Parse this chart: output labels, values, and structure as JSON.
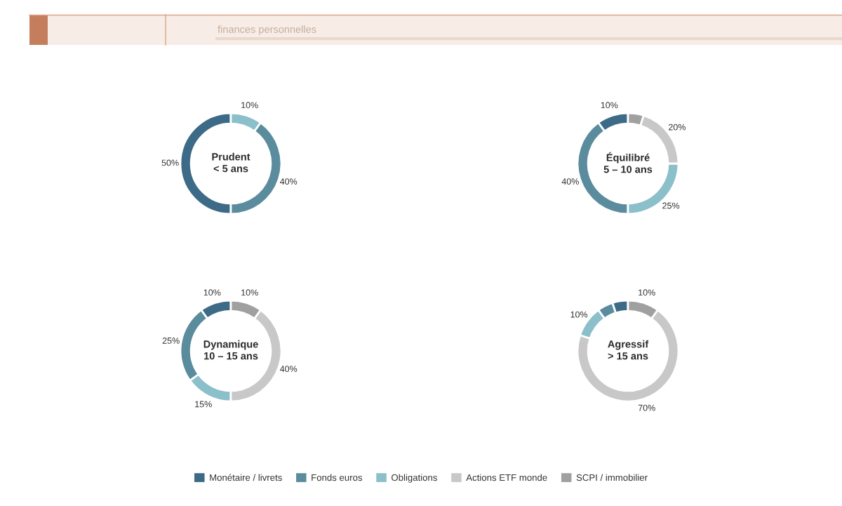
{
  "chart_data": [
    {
      "type": "donut",
      "title": "Prudent\n< 5 ans",
      "annotations": [
        "finances personnelles"
      ],
      "categories": [
        null,
        null,
        null
      ],
      "values": [
        50,
        40,
        10
      ],
      "colors": [
        "#3d6b87",
        "#5a8c9e",
        "#8bbfca"
      ],
      "value_labels": [
        "50%",
        "40%",
        "10%"
      ]
    },
    {
      "type": "donut",
      "title": "Équilibré\n5 – 10 ans",
      "categories": [
        null,
        null,
        null,
        null,
        null
      ],
      "values": [
        10,
        40,
        25,
        20,
        5
      ],
      "colors": [
        "#3d6b87",
        "#5a8c9e",
        "#8bbfca",
        "#c8c8c8",
        "#a0a0a0"
      ],
      "value_labels": [
        "10%",
        "40%",
        "25%",
        "20%",
        null
      ]
    },
    {
      "type": "donut",
      "title": "Dynamique\n10 – 15 ans",
      "categories": [
        null,
        null,
        null,
        null,
        null
      ],
      "values": [
        10,
        25,
        15,
        40,
        10
      ],
      "colors": [
        "#3d6b87",
        "#5a8c9e",
        "#8bbfca",
        "#c8c8c8",
        "#a0a0a0"
      ],
      "value_labels": [
        "10%",
        "25%",
        "15%",
        "40%",
        "10%"
      ]
    },
    {
      "type": "donut",
      "title": "Agressif\n> 15 ans",
      "categories": [
        "Monétaire / livrets",
        "Fonds euros",
        "Obligations",
        "Actions ETF monde",
        "SCPI / immobilier"
      ],
      "values": [
        5,
        5,
        10,
        70,
        10
      ],
      "colors": [
        "#3d6b87",
        "#5a8c9e",
        "#8bbfca",
        "#c8c8c8",
        "#a0a0a0"
      ],
      "value_labels": [
        null,
        null,
        "10%",
        "70%",
        "10%"
      ],
      "legend": "bottom"
    }
  ]
}
